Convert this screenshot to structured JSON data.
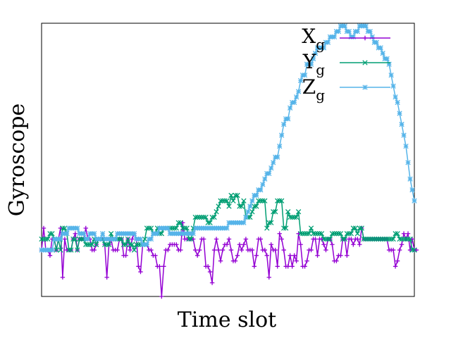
{
  "chart_data": {
    "type": "line",
    "title": "",
    "xlabel": "Time slot",
    "ylabel": "Gyroscope",
    "xlim": [
      0,
      177
    ],
    "ylim": [
      0,
      100
    ],
    "grid": false,
    "legend": "top-right",
    "x_start": 0,
    "series": [
      {
        "key": "x",
        "base": "X",
        "sub": "g",
        "marker": "plus",
        "color": "#9400d3",
        "values": [
          17,
          25,
          17,
          17,
          15,
          21,
          21,
          17,
          21,
          25,
          7,
          21,
          17,
          17,
          17,
          21,
          23,
          17,
          21,
          21,
          21,
          25,
          21,
          21,
          17,
          17,
          19,
          21,
          21,
          21,
          19,
          7,
          19,
          21,
          17,
          17,
          17,
          21,
          21,
          15,
          15,
          21,
          17,
          21,
          23,
          21,
          11,
          9,
          19,
          19,
          19,
          17,
          17,
          15,
          15,
          11,
          11,
          0,
          11,
          17,
          17,
          19,
          19,
          19,
          19,
          17,
          17,
          27,
          21,
          21,
          21,
          21,
          21,
          17,
          15,
          17,
          21,
          21,
          11,
          11,
          9,
          5,
          17,
          21,
          17,
          13,
          17,
          19,
          19,
          21,
          17,
          13,
          13,
          15,
          19,
          17,
          19,
          21,
          17,
          17,
          17,
          11,
          15,
          21,
          21,
          17,
          17,
          15,
          7,
          19,
          17,
          17,
          11,
          23,
          21,
          17,
          11,
          11,
          15,
          11,
          15,
          13,
          23,
          19,
          11,
          11,
          13,
          17,
          17,
          21,
          21,
          15,
          21,
          21,
          19,
          17,
          21,
          21,
          19,
          13,
          13,
          15,
          15,
          21,
          21,
          15,
          21,
          21,
          19,
          21,
          21,
          19,
          25,
          21,
          21,
          21,
          21,
          21,
          21,
          21,
          21,
          21,
          21,
          21,
          21,
          17,
          17,
          17,
          11,
          13,
          17,
          19,
          23,
          21,
          23,
          17,
          21,
          17,
          17
        ]
      },
      {
        "key": "y",
        "base": "Y",
        "sub": "g",
        "marker": "cross",
        "color": "#009e73",
        "values": [
          21,
          21,
          21,
          21,
          23,
          23,
          21,
          17,
          21,
          17,
          25,
          25,
          23,
          17,
          17,
          21,
          21,
          17,
          21,
          21,
          21,
          19,
          19,
          19,
          19,
          21,
          19,
          21,
          21,
          21,
          19,
          19,
          19,
          23,
          21,
          21,
          21,
          21,
          21,
          19,
          19,
          21,
          19,
          19,
          17,
          19,
          19,
          19,
          19,
          21,
          25,
          25,
          25,
          23,
          23,
          25,
          23,
          23,
          25,
          25,
          25,
          25,
          25,
          25,
          25,
          27,
          27,
          25,
          25,
          25,
          21,
          21,
          25,
          29,
          29,
          29,
          29,
          29,
          29,
          27,
          27,
          29,
          29,
          31,
          33,
          35,
          35,
          35,
          35,
          33,
          37,
          35,
          37,
          37,
          33,
          33,
          35,
          29,
          29,
          29,
          31,
          33,
          33,
          35,
          35,
          35,
          35,
          25,
          27,
          27,
          31,
          31,
          35,
          35,
          35,
          25,
          25,
          31,
          29,
          29,
          29,
          29,
          31,
          23,
          23,
          23,
          23,
          23,
          25,
          23,
          23,
          23,
          23,
          23,
          21,
          21,
          21,
          21,
          23,
          23,
          23,
          23,
          23,
          21,
          21,
          23,
          23,
          23,
          25,
          25,
          23,
          25,
          25,
          21,
          21,
          21,
          21,
          21,
          21,
          21,
          21,
          21,
          21,
          21,
          21,
          21,
          21,
          21,
          23,
          23,
          21,
          21,
          21,
          21,
          21,
          21,
          17,
          17
        ]
      },
      {
        "key": "z",
        "base": "Z",
        "sub": "g",
        "marker": "star",
        "color": "#56b4e9",
        "values": [
          17,
          17,
          17,
          17,
          17,
          17,
          21,
          21,
          21,
          21,
          23,
          23,
          23,
          25,
          25,
          25,
          25,
          25,
          23,
          23,
          23,
          21,
          21,
          23,
          23,
          23,
          21,
          21,
          21,
          23,
          21,
          21,
          21,
          21,
          21,
          21,
          23,
          23,
          23,
          23,
          23,
          23,
          23,
          23,
          23,
          21,
          21,
          21,
          19,
          19,
          19,
          21,
          21,
          23,
          23,
          23,
          25,
          25,
          25,
          25,
          25,
          23,
          23,
          23,
          23,
          23,
          23,
          23,
          23,
          23,
          23,
          23,
          23,
          25,
          25,
          25,
          25,
          25,
          25,
          25,
          25,
          25,
          25,
          25,
          25,
          25,
          25,
          25,
          25,
          27,
          27,
          27,
          27,
          27,
          27,
          27,
          27,
          29,
          31,
          33,
          35,
          37,
          37,
          39,
          39,
          41,
          43,
          45,
          45,
          47,
          49,
          51,
          51,
          55,
          59,
          63,
          65,
          65,
          69,
          71,
          71,
          73,
          75,
          79,
          81,
          81,
          85,
          85,
          85,
          87,
          89,
          91,
          91,
          91,
          91,
          93,
          93,
          95,
          95,
          95,
          97,
          97,
          99,
          99,
          99,
          97,
          97,
          95,
          95,
          97,
          97,
          99,
          99,
          99,
          99,
          97,
          97,
          95,
          93,
          93,
          91,
          91,
          89,
          87,
          87,
          85,
          81,
          77,
          73,
          71,
          67,
          63,
          59,
          55,
          49,
          43,
          39,
          35
        ]
      }
    ]
  }
}
